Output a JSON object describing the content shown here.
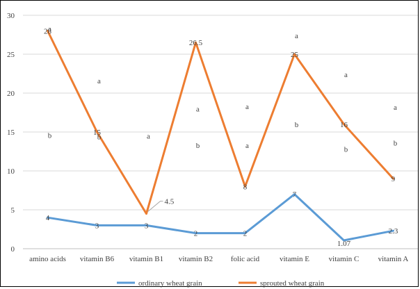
{
  "chart_data": {
    "type": "line",
    "title": "",
    "xlabel": "",
    "ylabel": "",
    "ylim": [
      0,
      30
    ],
    "yticks": [
      "0",
      "5",
      "10",
      "15",
      "20",
      "25",
      "30"
    ],
    "grid": true,
    "legend_position": "bottom",
    "categories": [
      "amino acids",
      "vitamin B6",
      "vitamin B1",
      "vitamin B2",
      "folic acid",
      "vitamin E",
      "vitamin C",
      "vitamin A"
    ],
    "series": [
      {
        "name": "ordinary wheat grain",
        "color": "#5B9BD5",
        "values": [
          4,
          3,
          3,
          2,
          2,
          7,
          1.07,
          2.3
        ],
        "labels": [
          "4",
          "3",
          "3",
          "2",
          "2",
          "7",
          "1.07",
          "2.3"
        ]
      },
      {
        "name": "sprouted wheat grain",
        "color": "#ED7D31",
        "values": [
          28,
          15,
          4.5,
          26.5,
          8,
          25,
          16,
          9
        ],
        "labels": [
          "28",
          "15",
          "4.5",
          "26.5",
          "8",
          "25",
          "16",
          "9"
        ]
      }
    ],
    "significance_letters": [
      {
        "category": "amino acids",
        "value": 28.3,
        "text": "a"
      },
      {
        "category": "amino acids",
        "value": 14.6,
        "text": "b"
      },
      {
        "category": "vitamin B6",
        "value": 21.6,
        "text": "a"
      },
      {
        "category": "vitamin B6",
        "value": 14.4,
        "text": "b"
      },
      {
        "category": "vitamin B1",
        "value": 14.5,
        "text": "a"
      },
      {
        "category": "vitamin B2",
        "value": 18.0,
        "text": "a"
      },
      {
        "category": "vitamin B2",
        "value": 13.3,
        "text": "b"
      },
      {
        "category": "folic acid",
        "value": 18.3,
        "text": "a"
      },
      {
        "category": "folic acid",
        "value": 13.3,
        "text": "a"
      },
      {
        "category": "vitamin E",
        "value": 27.4,
        "text": "a"
      },
      {
        "category": "vitamin E",
        "value": 16.0,
        "text": "b"
      },
      {
        "category": "vitamin C",
        "value": 22.4,
        "text": "a"
      },
      {
        "category": "vitamin C",
        "value": 12.8,
        "text": "b"
      },
      {
        "category": "vitamin A",
        "value": 18.2,
        "text": "a"
      },
      {
        "category": "vitamin A",
        "value": 13.6,
        "text": "b"
      }
    ]
  }
}
